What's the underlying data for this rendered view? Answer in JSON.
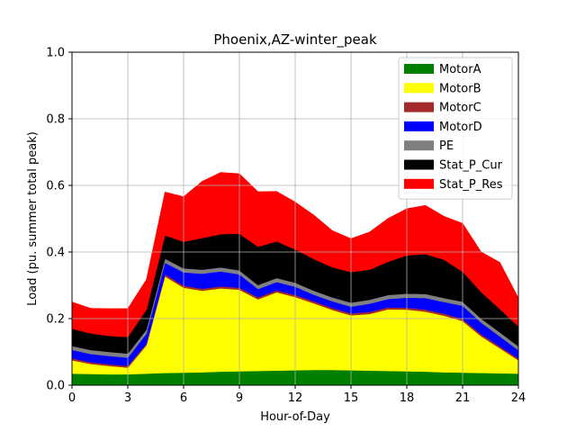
{
  "chart_data": {
    "type": "area",
    "stacked": true,
    "title": "Phoenix,AZ-winter_peak",
    "xlabel": "Hour-of-Day",
    "ylabel": "Load (pu. summer total peak)",
    "xlim": [
      0,
      24
    ],
    "ylim": [
      0,
      1.0
    ],
    "xticks": [
      "0",
      "3",
      "6",
      "9",
      "12",
      "15",
      "18",
      "21",
      "24"
    ],
    "yticks": [
      "0.0",
      "0.2",
      "0.4",
      "0.6",
      "0.8",
      "1.0"
    ],
    "grid": true,
    "legend_position": "top-right",
    "x": [
      0,
      1,
      2,
      3,
      4,
      5,
      6,
      7,
      8,
      9,
      10,
      11,
      12,
      13,
      14,
      15,
      16,
      17,
      18,
      19,
      20,
      21,
      22,
      23,
      24
    ],
    "series": [
      {
        "name": "MotorA",
        "color": "#008000",
        "values": [
          0.035,
          0.034,
          0.033,
          0.033,
          0.035,
          0.037,
          0.038,
          0.039,
          0.041,
          0.042,
          0.043,
          0.044,
          0.045,
          0.046,
          0.046,
          0.045,
          0.044,
          0.043,
          0.042,
          0.041,
          0.039,
          0.038,
          0.037,
          0.036,
          0.035
        ]
      },
      {
        "name": "MotorB",
        "color": "#ffff00",
        "values": [
          0.04,
          0.03,
          0.025,
          0.02,
          0.085,
          0.29,
          0.255,
          0.245,
          0.25,
          0.245,
          0.215,
          0.235,
          0.22,
          0.2,
          0.18,
          0.165,
          0.17,
          0.185,
          0.185,
          0.18,
          0.17,
          0.155,
          0.11,
          0.075,
          0.04
        ]
      },
      {
        "name": "MotorC",
        "color": "#a52a2a",
        "values": [
          0.006,
          0.005,
          0.005,
          0.005,
          0.005,
          0.006,
          0.006,
          0.006,
          0.006,
          0.006,
          0.006,
          0.006,
          0.006,
          0.006,
          0.006,
          0.006,
          0.006,
          0.006,
          0.006,
          0.006,
          0.006,
          0.006,
          0.006,
          0.006,
          0.005
        ]
      },
      {
        "name": "MotorD",
        "color": "#0000ff",
        "values": [
          0.025,
          0.025,
          0.025,
          0.025,
          0.03,
          0.035,
          0.04,
          0.045,
          0.045,
          0.04,
          0.025,
          0.025,
          0.025,
          0.02,
          0.02,
          0.02,
          0.025,
          0.025,
          0.03,
          0.035,
          0.035,
          0.04,
          0.035,
          0.03,
          0.025
        ]
      },
      {
        "name": "PE",
        "color": "#808080",
        "values": [
          0.012,
          0.012,
          0.012,
          0.012,
          0.012,
          0.012,
          0.012,
          0.012,
          0.012,
          0.012,
          0.012,
          0.012,
          0.012,
          0.012,
          0.012,
          0.012,
          0.012,
          0.012,
          0.012,
          0.012,
          0.012,
          0.012,
          0.012,
          0.012,
          0.012
        ]
      },
      {
        "name": "Stat_P_Cur",
        "color": "#000000",
        "values": [
          0.052,
          0.05,
          0.048,
          0.05,
          0.06,
          0.07,
          0.08,
          0.095,
          0.1,
          0.11,
          0.115,
          0.11,
          0.1,
          0.095,
          0.09,
          0.092,
          0.09,
          0.1,
          0.115,
          0.12,
          0.115,
          0.09,
          0.08,
          0.07,
          0.06
        ]
      },
      {
        "name": "Stat_P_Res",
        "color": "#ff0000",
        "values": [
          0.08,
          0.075,
          0.082,
          0.085,
          0.09,
          0.13,
          0.135,
          0.17,
          0.185,
          0.18,
          0.165,
          0.15,
          0.142,
          0.132,
          0.11,
          0.1,
          0.113,
          0.13,
          0.14,
          0.146,
          0.13,
          0.145,
          0.12,
          0.14,
          0.085
        ]
      }
    ]
  }
}
